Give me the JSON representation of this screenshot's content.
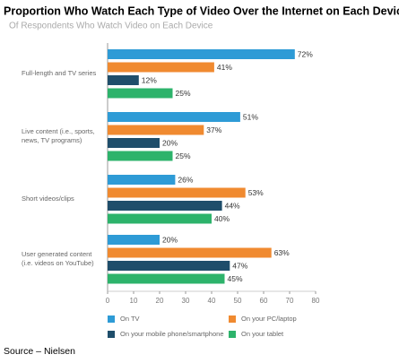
{
  "chart_data": {
    "type": "bar",
    "orientation": "horizontal",
    "title": "Proportion Who Watch Each Type of Video Over the Internet on Each Device",
    "subtitle": "Of Respondents Who Watch Video on Each Device",
    "source": "Source – Nielsen",
    "categories": [
      [
        "Full-length and TV series"
      ],
      [
        "Live content (i.e., sports,",
        "news, TV programs)"
      ],
      [
        "Short videos/clips"
      ],
      [
        "User generated content",
        "(i.e. videos on YouTube)"
      ]
    ],
    "series": [
      {
        "name": "On TV",
        "color": "#2e9bd6",
        "values": [
          72,
          51,
          26,
          20
        ],
        "value_labels": [
          "72%",
          "51%",
          "26%",
          "20%"
        ]
      },
      {
        "name": "On your PC/laptop",
        "color": "#f08a30",
        "values": [
          41,
          37,
          53,
          63
        ],
        "value_labels": [
          "41%",
          "37%",
          "53%",
          "63%"
        ]
      },
      {
        "name": "On your mobile phone/smartphone",
        "color": "#1f4e6b",
        "values": [
          12,
          20,
          44,
          47
        ],
        "value_labels": [
          "12%",
          "20%",
          "44%",
          "47%"
        ]
      },
      {
        "name": "On your tablet",
        "color": "#2db36b",
        "values": [
          25,
          25,
          40,
          45
        ],
        "value_labels": [
          "25%",
          "25%",
          "40%",
          "45%"
        ]
      }
    ],
    "xlim": [
      0,
      80
    ],
    "xticks": [
      0,
      10,
      20,
      30,
      40,
      50,
      60,
      70,
      80
    ],
    "grid": false
  }
}
